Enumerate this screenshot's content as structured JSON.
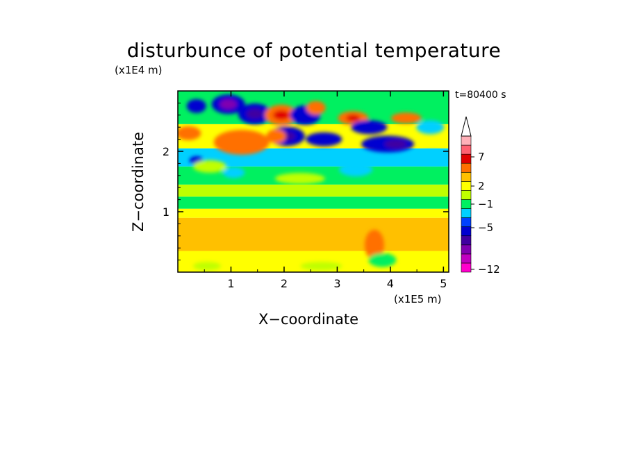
{
  "chart_data": {
    "type": "heatmap",
    "title": "disturbunce of potential temperature",
    "time_label": "t=80400 s",
    "xlabel": "X−coordinate",
    "ylabel": "Z−coordinate",
    "x_scale_label": "(x1E5 m)",
    "y_scale_label": "(x1E4 m)",
    "xlim": [
      0,
      5.1
    ],
    "ylim": [
      0,
      3.0
    ],
    "x_ticks": [
      "1",
      "2",
      "3",
      "4",
      "5"
    ],
    "y_ticks": [
      "1",
      "2"
    ],
    "colorbar": {
      "tick_labels": [
        "7",
        "2",
        "−1",
        "−5",
        "−12"
      ],
      "colors_bottom_to_top": [
        "#ff00cc",
        "#c000c0",
        "#8000b0",
        "#4000a0",
        "#0000d0",
        "#0040ff",
        "#00d0ff",
        "#00f060",
        "#c0ff00",
        "#ffff00",
        "#ffc000",
        "#ff7000",
        "#e00000",
        "#ff6070",
        "#ffb0b8"
      ]
    }
  }
}
